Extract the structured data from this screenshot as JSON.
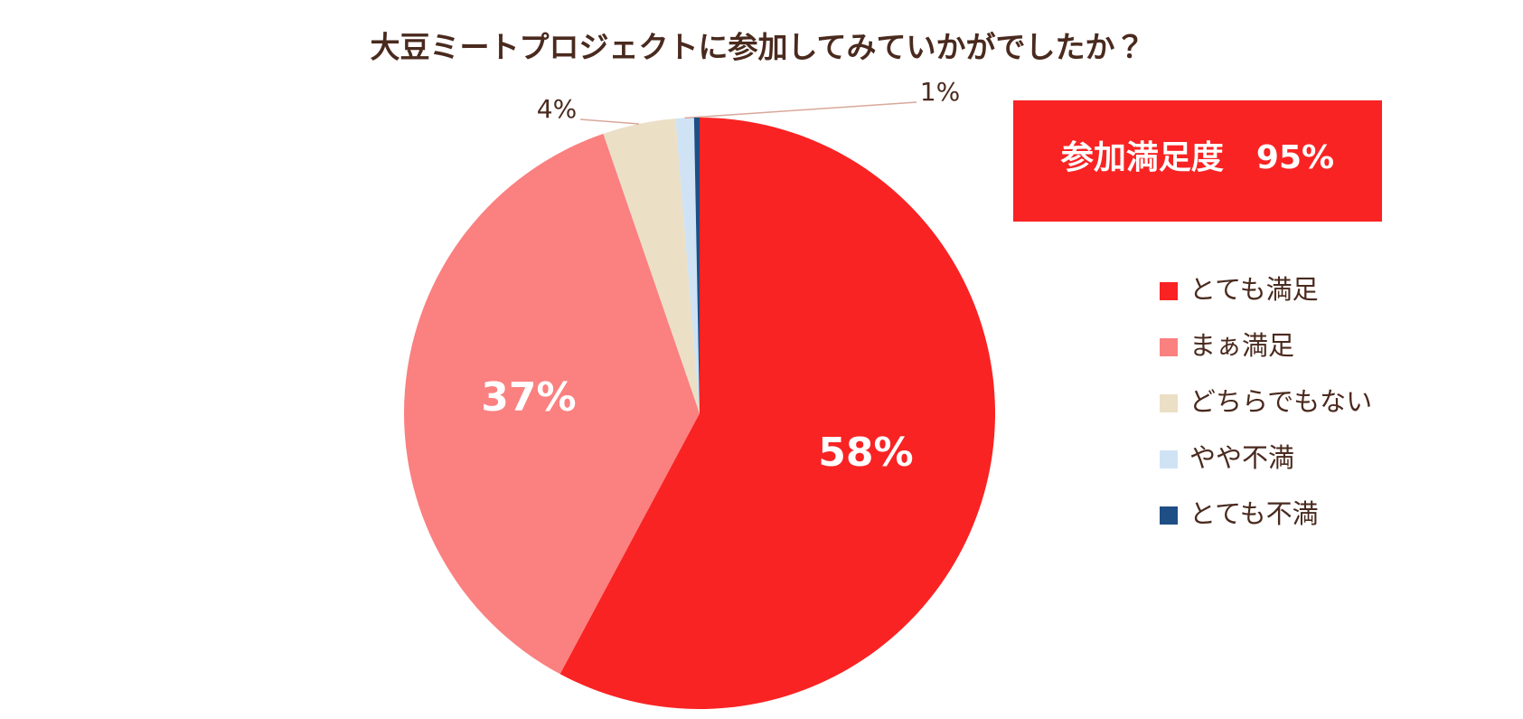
{
  "chart_data": {
    "type": "pie",
    "title": "大豆ミートプロジェクトに参加してみていかがでしたか？",
    "annotation": "参加満足度　95%",
    "categories": [
      "とても満足",
      "まぁ満足",
      "どちらでもない",
      "やや不満",
      "とても不満"
    ],
    "values": [
      58,
      37,
      4,
      1,
      0.3
    ],
    "value_labels": [
      "58%",
      "37%",
      "4%",
      "1%",
      null
    ],
    "colors": [
      "#f92323",
      "#fb8080",
      "#ebdfc5",
      "#cfe3f5",
      "#1f4e85"
    ],
    "legend": "right"
  }
}
